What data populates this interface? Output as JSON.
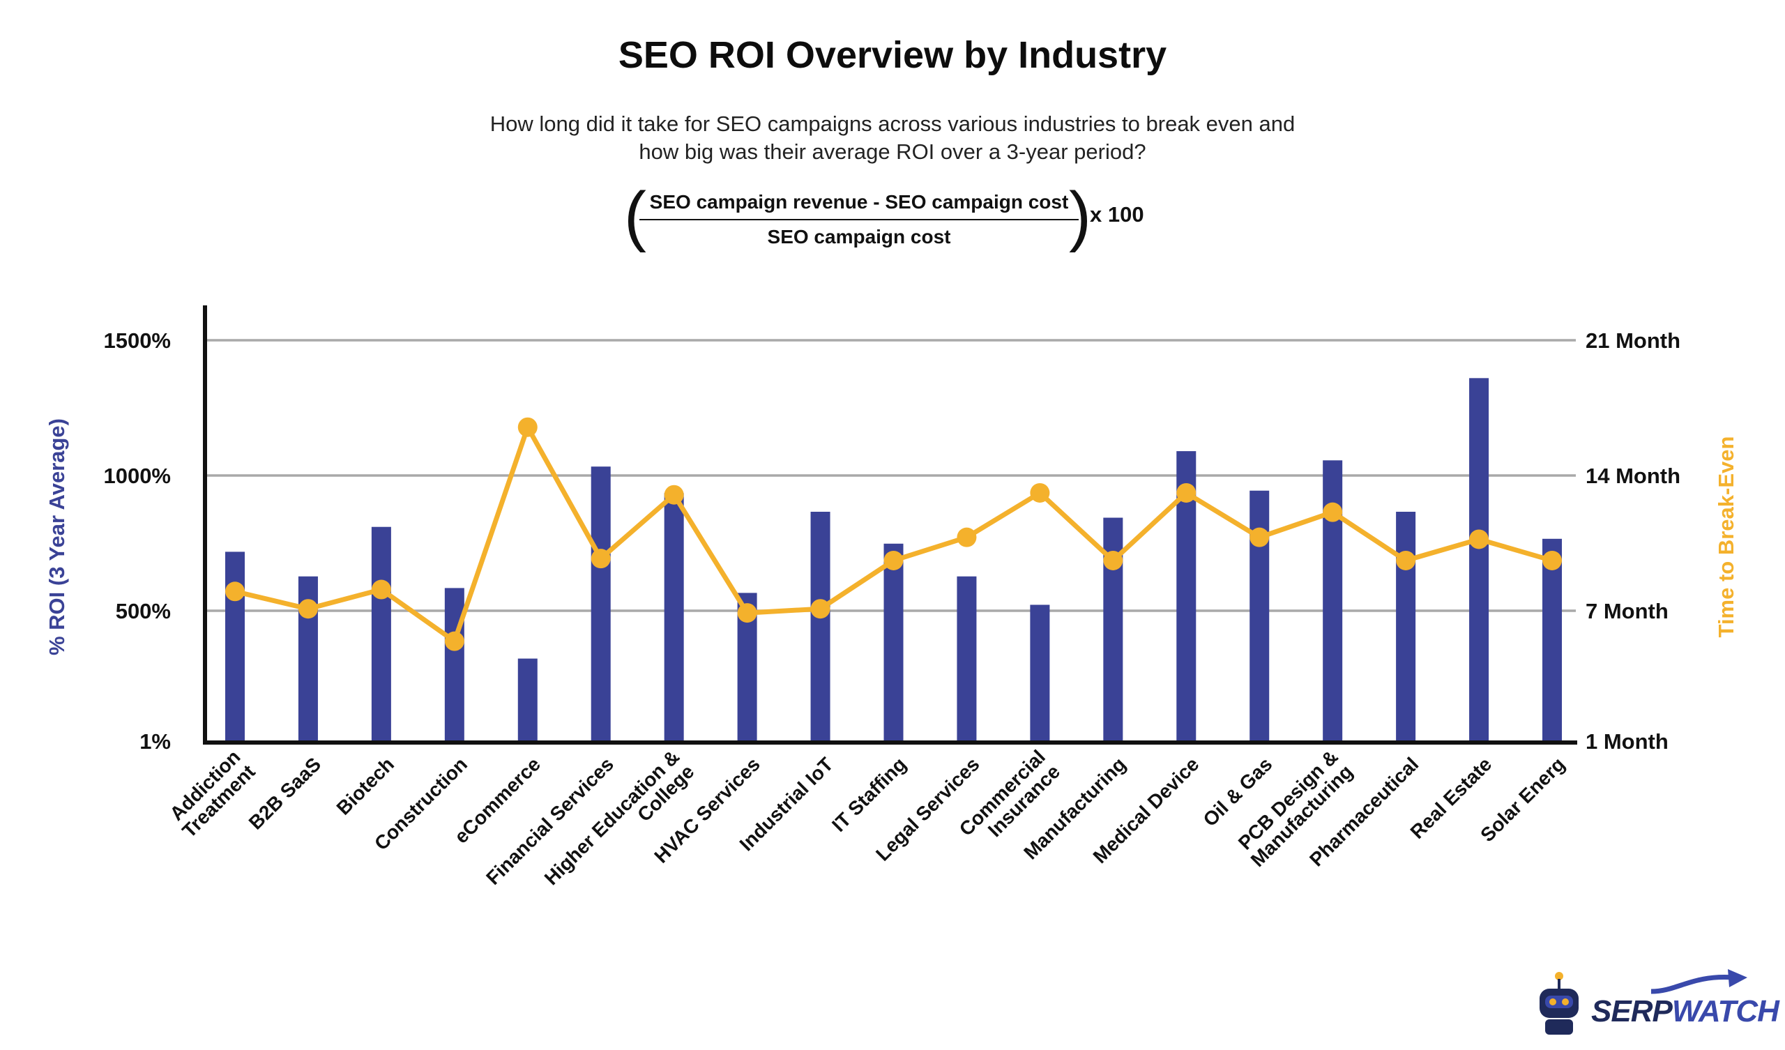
{
  "title": "SEO ROI Overview by Industry",
  "subtitle": "How long did it take for SEO campaigns across various industries to break even and how big was their average ROI over a 3-year period?",
  "formula": {
    "numerator": "SEO campaign revenue - SEO campaign cost",
    "denominator": "SEO campaign cost",
    "multiplier": "x 100"
  },
  "logo": {
    "text_part1": "SERP",
    "text_part2": "WATCH"
  },
  "colors": {
    "bar": "#3a4296",
    "line": "#f4b12c",
    "grid": "#a9a9a9",
    "axis": "#111111"
  },
  "chart_data": {
    "type": "bar",
    "ylabel": "% ROI (3 Year Average)",
    "y2label": "Time to Break-Even",
    "y_ticks": [
      "1%",
      "500%",
      "1000%",
      "1500%"
    ],
    "y2_ticks": [
      "1 Month",
      "7 Month",
      "14 Month",
      "21 Month"
    ],
    "categories": [
      "Addiction Treatment",
      "B2B SaaS",
      "Biotech",
      "Construction",
      "eCommerce",
      "Financial Services",
      "Higher Education & College",
      "HVAC Services",
      "Industrial IoT",
      "IT Staffing",
      "Legal Services",
      "Commercial Insurance",
      "Manufacturing",
      "Medical Device",
      "Oil & Gas",
      "PCB Design & Manufacturing",
      "Pharmaceutical",
      "Real Estate",
      "Solar Energ"
    ],
    "series": [
      {
        "name": "% ROI (3 Year Average)",
        "type": "bar",
        "values": [
          718,
          627,
          810,
          584,
          317,
          1033,
          935,
          566,
          866,
          748,
          627,
          522,
          844,
          1090,
          944,
          1056,
          866,
          1360,
          766
        ]
      },
      {
        "name": "Time to Break-Even",
        "type": "line",
        "values": [
          8.0,
          7.1,
          8.1,
          5.6,
          16.5,
          9.7,
          13.0,
          6.9,
          7.1,
          9.6,
          10.8,
          13.1,
          9.6,
          13.1,
          10.8,
          12.1,
          9.6,
          10.7,
          9.6
        ]
      }
    ]
  }
}
